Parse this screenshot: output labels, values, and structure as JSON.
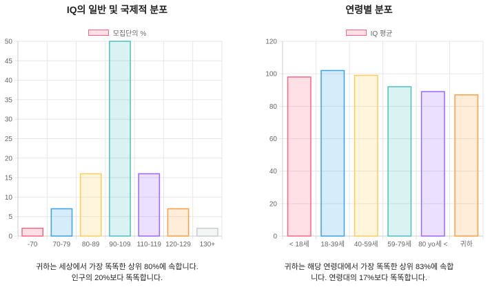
{
  "chart_data": [
    {
      "type": "bar",
      "title": "IQ의 일반 및 국제적 분포",
      "legend": "모집단의 %",
      "categories": [
        "-70",
        "70-79",
        "80-89",
        "90-109",
        "110-119",
        "120-129",
        "130+"
      ],
      "values": [
        2,
        7,
        16,
        50,
        16,
        7,
        2
      ],
      "colors": [
        "#ff6384",
        "#36a2eb",
        "#ffcd56",
        "#4bc0c0",
        "#9966ff",
        "#ff9f40",
        "#c9cbcf"
      ],
      "ylim": [
        0,
        50
      ],
      "yticks": [
        0,
        5,
        10,
        15,
        20,
        25,
        30,
        35,
        40,
        45,
        50
      ],
      "grid": true,
      "legend_position": "top"
    },
    {
      "type": "bar",
      "title": "연령별 분포",
      "legend": "IQ 평균",
      "categories": [
        "< 18세",
        "18-39세",
        "40-59세",
        "59-79세",
        "80 yo세 <",
        "귀하"
      ],
      "values": [
        98,
        102,
        99,
        92,
        89,
        87
      ],
      "colors": [
        "#ff6384",
        "#36a2eb",
        "#ffcd56",
        "#4bc0c0",
        "#9966ff",
        "#ff9f40"
      ],
      "ylim": [
        0,
        120
      ],
      "yticks": [
        0,
        20,
        40,
        60,
        80,
        100,
        120
      ],
      "grid": true,
      "legend_position": "top"
    }
  ],
  "captions": {
    "left": [
      "귀하는 세상에서 가장 똑똑한 상위 80%에 속합니다.",
      "인구의 20%보다 똑똑합니다."
    ],
    "right": [
      "귀하는 해당 연령대에서 가장 똑똑한 상위 83%에 속합",
      "니다. 연령대의 17%보다 똑똑합니다."
    ]
  }
}
